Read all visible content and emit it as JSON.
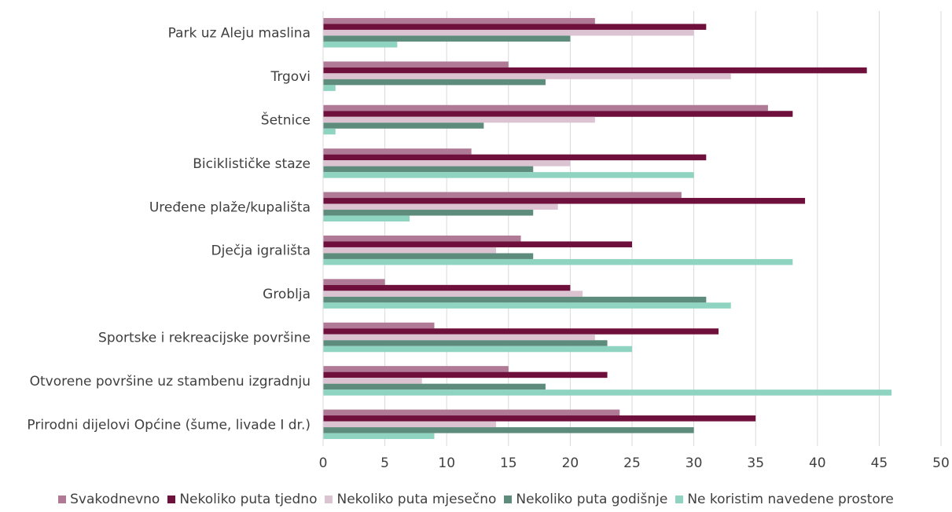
{
  "chart_data": {
    "type": "bar",
    "orientation": "horizontal",
    "categories": [
      "Park uz Aleju maslina",
      "Trgovi",
      "Šetnice",
      "Biciklističke staze",
      "Uređene plaže/kupališta",
      "Dječja igrališta",
      "Groblja",
      "Sportske i rekreacijske površine",
      "Otvorene površine uz stambenu izgradnju",
      "Prirodni dijelovi Općine (šume, livade I dr.)"
    ],
    "series": [
      {
        "name": "Svakodnevno",
        "color": "#b07a96",
        "values": [
          22,
          15,
          36,
          12,
          29,
          16,
          5,
          9,
          15,
          24
        ]
      },
      {
        "name": "Nekoliko puta tjedno",
        "color": "#6e0f3c",
        "values": [
          31,
          44,
          38,
          31,
          39,
          25,
          20,
          32,
          23,
          35
        ]
      },
      {
        "name": "Nekoliko puta mjesečno",
        "color": "#dcc3d2",
        "values": [
          30,
          33,
          22,
          20,
          19,
          14,
          21,
          22,
          8,
          14
        ]
      },
      {
        "name": "Nekoliko puta godišnje",
        "color": "#5e8c7c",
        "values": [
          20,
          18,
          13,
          17,
          17,
          17,
          31,
          23,
          18,
          30
        ]
      },
      {
        "name": "Ne koristim navedene prostore",
        "color": "#8fd3c1",
        "values": [
          6,
          1,
          1,
          30,
          7,
          38,
          33,
          25,
          46,
          9
        ]
      }
    ],
    "xlim": [
      0,
      50
    ],
    "xticks": [
      "0",
      "5",
      "10",
      "15",
      "20",
      "25",
      "30",
      "35",
      "40",
      "45",
      "50"
    ],
    "grid": "vertical",
    "legend_position": "bottom"
  }
}
